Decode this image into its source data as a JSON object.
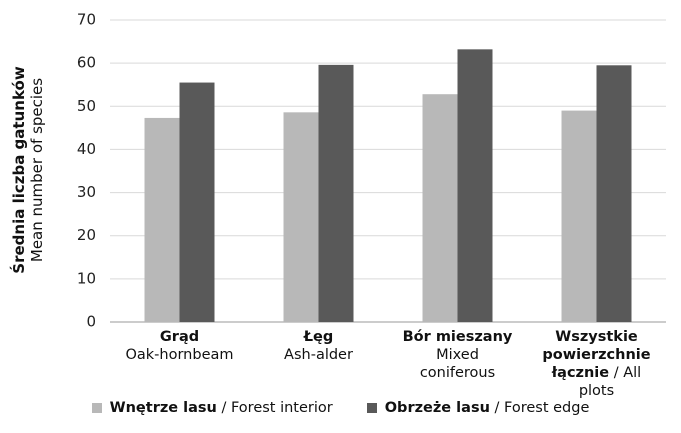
{
  "chart_data": {
    "type": "bar",
    "ylabel": "Średnia liczba gatunków",
    "ylabel_en": "Mean number of species",
    "categories": [
      {
        "bold": "Grąd",
        "text": "Oak-hornbeam"
      },
      {
        "bold": "Łęg",
        "text": "Ash-alder"
      },
      {
        "bold": "Bór mieszany",
        "text": "Mixed coniferous"
      },
      {
        "bold": "Wszystkie powierzchnie łącznie",
        "text": "/ All plots"
      }
    ],
    "series": [
      {
        "name": "Wnętrze lasu",
        "name_en": "/ Forest interior",
        "color": "#b8b8b8",
        "values": [
          47.3,
          48.6,
          52.8,
          49.0
        ]
      },
      {
        "name": "Obrzeże lasu",
        "name_en": "/ Forest edge",
        "color": "#595959",
        "values": [
          55.5,
          59.6,
          63.2,
          59.5
        ]
      }
    ],
    "ylim": [
      0,
      70
    ],
    "yticks": [
      0,
      10,
      20,
      30,
      40,
      50,
      60,
      70
    ],
    "grid": true
  }
}
